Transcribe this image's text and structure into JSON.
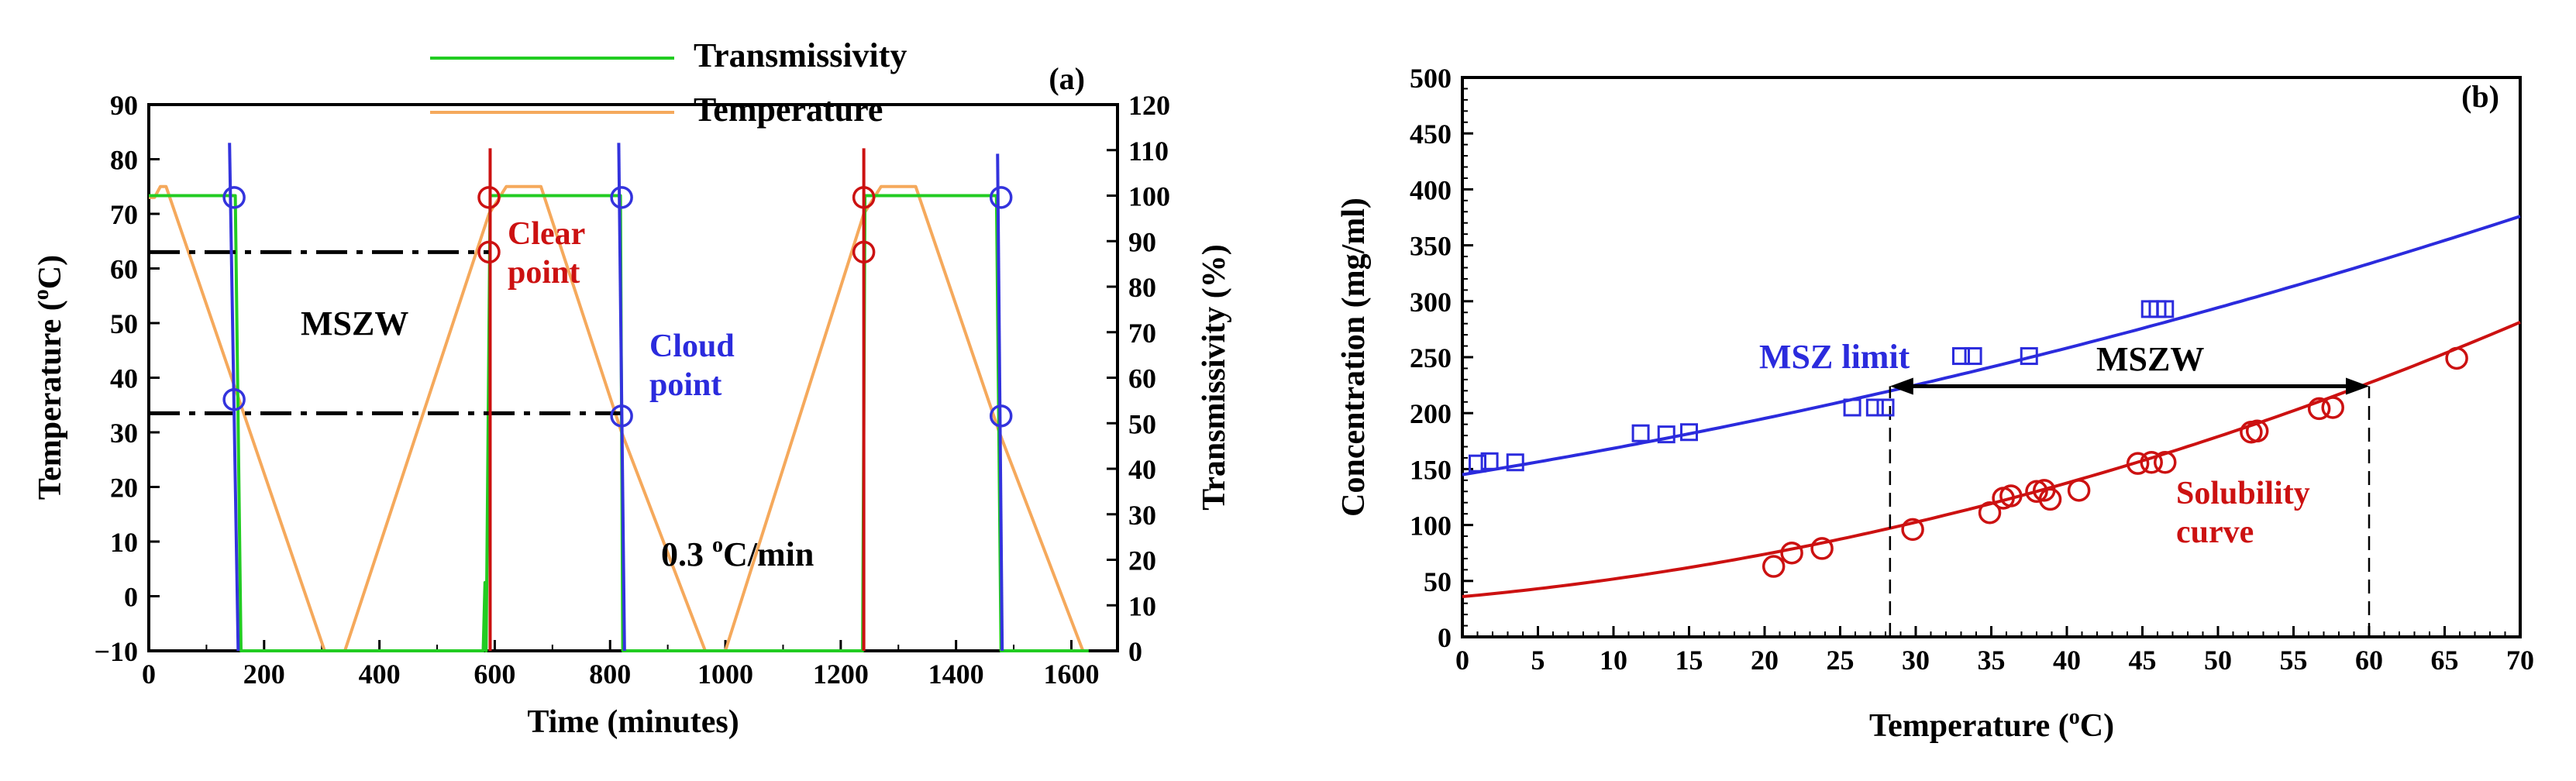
{
  "chart_data": [
    {
      "id": "a",
      "type": "line",
      "panel_label": "(a)",
      "xlabel": "Time (minutes)",
      "ylabel_left_main": "Temperature (",
      "ylabel_left_sup": "o",
      "ylabel_left_tail": "C)",
      "ylabel_right": "Transmissivity (%)",
      "xlim": [
        0,
        1680
      ],
      "ylim_left": [
        -10,
        90
      ],
      "ylim_right": [
        0,
        120
      ],
      "xticks": [
        0,
        200,
        400,
        600,
        800,
        1000,
        1200,
        1400,
        1600
      ],
      "yticks_left": [
        -10,
        0,
        10,
        20,
        30,
        40,
        50,
        60,
        70,
        80,
        90
      ],
      "yticks_right": [
        0,
        10,
        20,
        30,
        40,
        50,
        60,
        70,
        80,
        90,
        100,
        110,
        120
      ],
      "legend": [
        {
          "name": "Transmissivity",
          "color": "#22cc22"
        },
        {
          "name": "Temperature",
          "color": "#f5a95c"
        }
      ],
      "series": [
        {
          "name": "Temperature",
          "axis": "left",
          "color": "#f5a95c",
          "points": [
            [
              0,
              73
            ],
            [
              10,
              73
            ],
            [
              20,
              75
            ],
            [
              30,
              75
            ],
            [
              150,
              38
            ],
            [
              305,
              -10
            ],
            [
              340,
              -10
            ],
            [
              590,
              70
            ],
            [
              620,
              75
            ],
            [
              680,
              75
            ],
            [
              820,
              30
            ],
            [
              965,
              -10
            ],
            [
              1000,
              -10
            ],
            [
              1240,
              70
            ],
            [
              1270,
              75
            ],
            [
              1330,
              75
            ],
            [
              1475,
              30
            ],
            [
              1620,
              -10
            ]
          ]
        },
        {
          "name": "Transmissivity",
          "axis": "right",
          "color": "#22cc22",
          "points": [
            [
              0,
              100
            ],
            [
              150,
              100
            ],
            [
              160,
              0
            ],
            [
              580,
              0
            ],
            [
              583,
              15
            ],
            [
              585,
              0
            ],
            [
              592,
              100
            ],
            [
              818,
              100
            ],
            [
              822,
              0
            ],
            [
              1238,
              0
            ],
            [
              1242,
              100
            ],
            [
              1470,
              100
            ],
            [
              1478,
              0
            ],
            [
              1630,
              0
            ]
          ]
        }
      ],
      "markers": [
        {
          "label": "cloud",
          "color": "#3333dd",
          "points": [
            [
              148,
              73
            ],
            [
              148,
              36
            ],
            [
              820,
              73
            ],
            [
              820,
              33
            ],
            [
              1478,
              73
            ],
            [
              1478,
              33
            ]
          ]
        },
        {
          "label": "clear",
          "color": "#cc1111",
          "points": [
            [
              590,
              73
            ],
            [
              590,
              63
            ],
            [
              1240,
              73
            ],
            [
              1240,
              63
            ]
          ]
        }
      ],
      "spikes": [
        {
          "color": "#3333dd",
          "x": [
            140,
            155
          ],
          "y": [
            83,
            -10
          ]
        },
        {
          "color": "#cc1111",
          "x": [
            592,
            592
          ],
          "y": [
            82,
            -10
          ]
        },
        {
          "color": "#3333dd",
          "x": [
            815,
            825
          ],
          "y": [
            83,
            -10
          ]
        },
        {
          "color": "#cc1111",
          "x": [
            1240,
            1240
          ],
          "y": [
            82,
            -10
          ]
        },
        {
          "color": "#3333dd",
          "x": [
            1472,
            1480
          ],
          "y": [
            81,
            -10
          ]
        }
      ],
      "dashdot_lines": [
        {
          "y": 63,
          "x": [
            0,
            590
          ]
        },
        {
          "y": 33.5,
          "x": [
            0,
            820
          ]
        }
      ],
      "annotations": {
        "msz": "MSZW",
        "clear_1": "Clear",
        "clear_2": "point",
        "cloud_1": "Cloud",
        "cloud_2": "point",
        "rate_num": "0.3 ",
        "rate_sup": "o",
        "rate_unit": "C/min"
      }
    },
    {
      "id": "b",
      "type": "scatter",
      "panel_label": "(b)",
      "xlabel_main": "Temperature (",
      "xlabel_sup": "o",
      "xlabel_tail": "C)",
      "ylabel": "Concentration (mg/ml)",
      "xlim": [
        0,
        70
      ],
      "ylim": [
        0,
        500
      ],
      "xticks": [
        0,
        5,
        10,
        15,
        20,
        25,
        30,
        35,
        40,
        45,
        50,
        55,
        60,
        65,
        70
      ],
      "yticks": [
        0,
        50,
        100,
        150,
        200,
        250,
        300,
        350,
        400,
        450,
        500
      ],
      "series": [
        {
          "name": "MSZ limit",
          "style": "curve",
          "color": "#2b2bdd",
          "coeffs": [
            145,
            2.2,
            0.0157
          ]
        },
        {
          "name": "Solubility curve",
          "style": "curve",
          "color": "#cc1111",
          "coeffs": [
            36,
            1.25,
            0.0322
          ]
        },
        {
          "name": "MSZ limit data",
          "style": "square",
          "color": "#2b2bdd",
          "points": [
            [
              1,
              155
            ],
            [
              1.8,
              157
            ],
            [
              3.5,
              156
            ],
            [
              11.8,
              182
            ],
            [
              13.5,
              181
            ],
            [
              15,
              183
            ],
            [
              25.8,
              205
            ],
            [
              27.3,
              205
            ],
            [
              28,
              205
            ],
            [
              33,
              251
            ],
            [
              33.8,
              251
            ],
            [
              37.5,
              251
            ],
            [
              45.5,
              293
            ],
            [
              46,
              293
            ],
            [
              46.5,
              293
            ]
          ]
        },
        {
          "name": "Solubility data",
          "style": "circle",
          "color": "#cc1111",
          "points": [
            [
              20.6,
              63
            ],
            [
              21.8,
              75
            ],
            [
              23.8,
              79
            ],
            [
              29.8,
              96
            ],
            [
              34.9,
              111
            ],
            [
              35.8,
              124
            ],
            [
              36.3,
              126
            ],
            [
              38,
              130
            ],
            [
              38.5,
              131
            ],
            [
              38.9,
              123
            ],
            [
              40.8,
              131
            ],
            [
              44.7,
              155
            ],
            [
              45.6,
              156
            ],
            [
              46.5,
              156
            ],
            [
              52.2,
              183
            ],
            [
              52.6,
              184
            ],
            [
              56.7,
              204
            ],
            [
              57.6,
              205
            ],
            [
              65.8,
              249
            ]
          ]
        }
      ],
      "mszw_arrow": {
        "x": [
          28.3,
          60
        ],
        "y": 224
      },
      "dashed_verticals": [
        {
          "x": 28.3,
          "y": [
            0,
            224
          ]
        },
        {
          "x": 60,
          "y": [
            0,
            224
          ]
        }
      ],
      "annotations": {
        "msz_limit": "MSZ limit",
        "mszw": "MSZW",
        "sol_1": "Solubility",
        "sol_2": "curve"
      }
    }
  ]
}
